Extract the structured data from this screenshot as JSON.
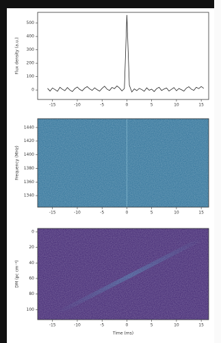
{
  "chart_data": [
    {
      "type": "line",
      "ylabel": "Flux density (a.u.)",
      "color": "#222222",
      "x": [
        -16,
        -15.5,
        -15,
        -14.5,
        -14,
        -13.5,
        -13,
        -12.5,
        -12,
        -11.5,
        -11,
        -10.5,
        -10,
        -9.5,
        -9,
        -8.5,
        -8,
        -7.5,
        -7,
        -6.5,
        -6,
        -5.5,
        -5,
        -4.5,
        -4,
        -3.5,
        -3,
        -2.5,
        -2,
        -1.5,
        -1,
        -0.5,
        0,
        0.5,
        1,
        1.5,
        2,
        2.5,
        3,
        3.5,
        4,
        4.5,
        5,
        5.5,
        6,
        6.5,
        7,
        7.5,
        8,
        8.5,
        9,
        9.5,
        10,
        10.5,
        11,
        11.5,
        12,
        12.5,
        13,
        13.5,
        14,
        14.5,
        15,
        15.5
      ],
      "values": [
        12,
        -8,
        15,
        3,
        -10,
        20,
        5,
        -5,
        18,
        0,
        -12,
        10,
        22,
        4,
        -6,
        14,
        25,
        8,
        -3,
        16,
        2,
        -9,
        12,
        28,
        6,
        -4,
        19,
        10,
        30,
        15,
        -7,
        11,
        560,
        35,
        -15,
        8,
        -5,
        12,
        3,
        -10,
        16,
        -2,
        6,
        -12,
        10,
        20,
        -4,
        7,
        15,
        -8,
        5,
        18,
        -6,
        11,
        2,
        -9,
        14,
        24,
        6,
        -3,
        20,
        10,
        26,
        12
      ],
      "xlim": [
        -18,
        16.5
      ],
      "xticks": [
        -15,
        -10,
        -5,
        0,
        5,
        10,
        15
      ],
      "ylim": [
        -71,
        580
      ],
      "yticks": [
        0,
        100,
        200,
        300,
        400,
        500
      ]
    },
    {
      "type": "heatmap",
      "ylabel": "Frequency (MHz)",
      "color": "#2a6f97",
      "xlim": [
        -18,
        16.5
      ],
      "xticks": [
        -15,
        -10,
        -5,
        0,
        5,
        10,
        15
      ],
      "ylim": [
        1323,
        1453
      ],
      "yticks": [
        1440,
        1420,
        1400,
        1380,
        1360,
        1340
      ]
    },
    {
      "type": "heatmap",
      "ylabel": "DM (pc cm⁻³)",
      "xlabel": "Time (ms)",
      "color": "#3b1f6e",
      "xlim": [
        -18,
        16.5
      ],
      "xticks": [
        -15,
        -10,
        -5,
        0,
        5,
        10,
        15
      ],
      "ylim": [
        113,
        -4.4
      ],
      "yticks": [
        0,
        20,
        40,
        60,
        80,
        100
      ]
    }
  ]
}
